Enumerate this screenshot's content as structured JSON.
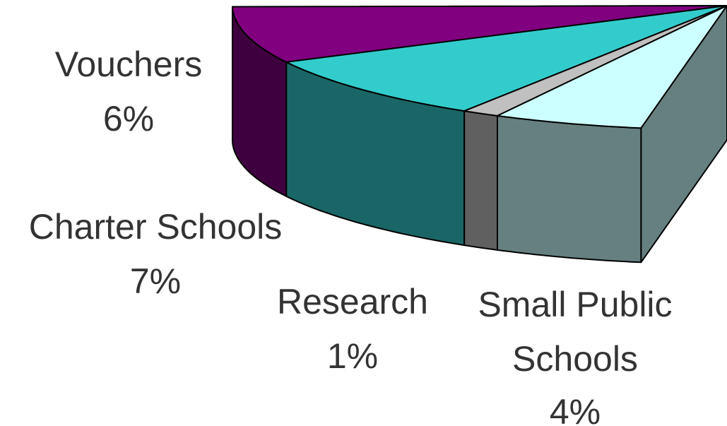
{
  "chart_data": {
    "type": "pie",
    "style": "3d-exploded-partial",
    "slices": [
      {
        "label": "Vouchers",
        "value": 6,
        "display": "6%",
        "top_color": "#800080",
        "side_color": "#3f003f"
      },
      {
        "label": "Charter Schools",
        "value": 7,
        "display": "7%",
        "top_color": "#33cccc",
        "side_color": "#1a6666"
      },
      {
        "label": "Research",
        "value": 1,
        "display": "1%",
        "top_color": "#c0c0c0",
        "side_color": "#606060"
      },
      {
        "label": "Small Public Schools",
        "display_lines": [
          "Small Public",
          "Schools"
        ],
        "value": 4,
        "display": "4%",
        "top_color": "#ccffff",
        "side_color": "#668080"
      }
    ],
    "title": "",
    "legend": "none"
  }
}
